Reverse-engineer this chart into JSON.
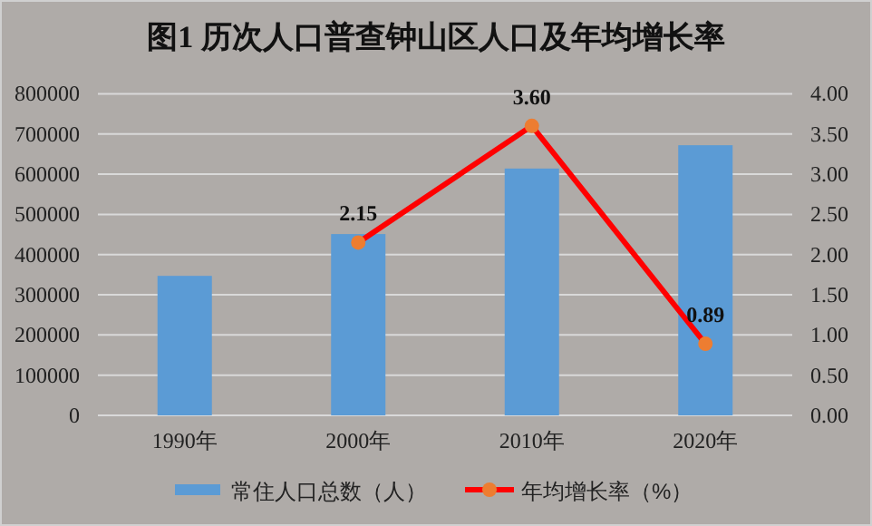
{
  "chart_data": {
    "type": "bar",
    "title": "图1  历次人口普查钟山区人口及年均增长率",
    "categories": [
      "1990年",
      "2000年",
      "2010年",
      "2020年"
    ],
    "series": [
      {
        "name": "常住人口总数（人）",
        "color": "#5b9bd5",
        "values": [
          347000,
          451000,
          614000,
          672000
        ]
      },
      {
        "name": "年均增长率（%）",
        "type": "line",
        "axis": "y2",
        "color": "#ff0000",
        "marker": "circle",
        "values": [
          null,
          2.15,
          3.6,
          0.89
        ],
        "value_labels": [
          null,
          "2.15",
          "3.60",
          "0.89"
        ]
      }
    ],
    "ylim": [
      0,
      800000
    ],
    "yticks": [
      0,
      100000,
      200000,
      300000,
      400000,
      500000,
      600000,
      700000,
      800000
    ],
    "y2lim": [
      0,
      4
    ],
    "y2ticks": [
      {
        "value": 0,
        "label": "0.00"
      },
      {
        "value": 0.5,
        "label": "0.50"
      },
      {
        "value": 1,
        "label": "1.00"
      },
      {
        "value": 1.5,
        "label": "1.50"
      },
      {
        "value": 2,
        "label": "2.00"
      },
      {
        "value": 2.5,
        "label": "2.50"
      },
      {
        "value": 3,
        "label": "3.00"
      },
      {
        "value": 3.5,
        "label": "3.50"
      },
      {
        "value": 4,
        "label": "4.00"
      }
    ],
    "grid": "y",
    "legend": "bottom"
  }
}
